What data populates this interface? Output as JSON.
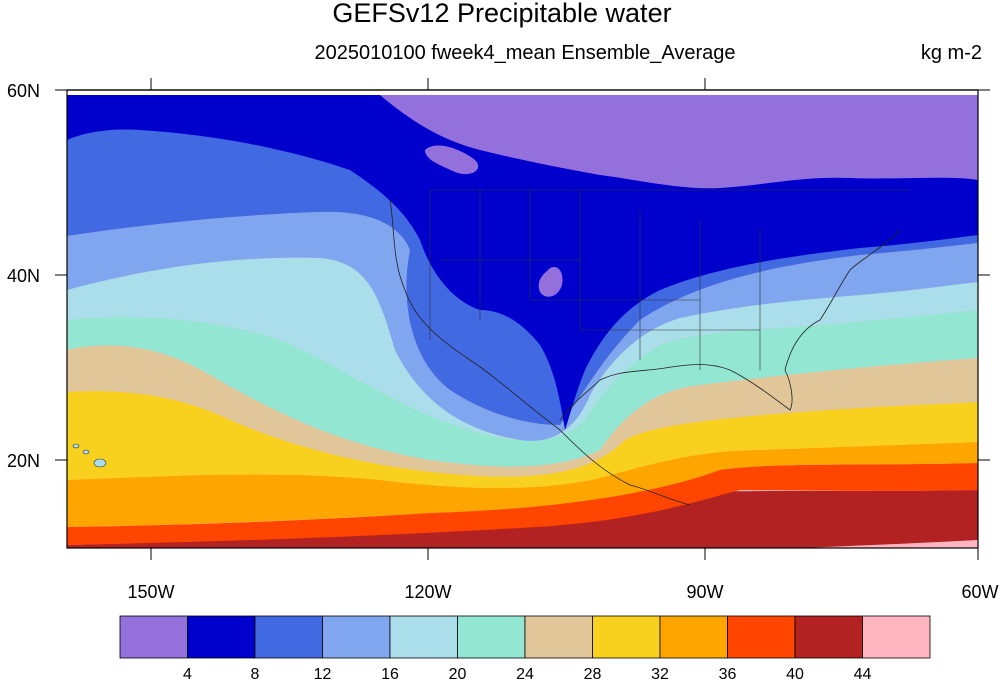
{
  "title": "GEFSv12 Precipitable water",
  "subtitle": "2025010100 fweek4_mean Ensemble_Average",
  "units": "kg m-2",
  "axes": {
    "lon_labels": [
      "150W",
      "120W",
      "90W",
      "60W"
    ],
    "lat_labels": [
      "60N",
      "40N",
      "20N"
    ]
  },
  "colorbar": {
    "colors": [
      "#9370db",
      "#0000cd",
      "#4169e1",
      "#7fa6ee",
      "#aadeea",
      "#93e6d2",
      "#e1c699",
      "#f7d11d",
      "#ffa500",
      "#ff4500",
      "#b22222",
      "#ffb6c1"
    ],
    "labels": [
      "4",
      "8",
      "12",
      "16",
      "20",
      "24",
      "28",
      "32",
      "36",
      "40",
      "44"
    ]
  },
  "map": {
    "region": "North America and eastern Pacific",
    "lon_range": [
      -159,
      -60
    ],
    "lat_range": [
      10,
      60
    ]
  }
}
